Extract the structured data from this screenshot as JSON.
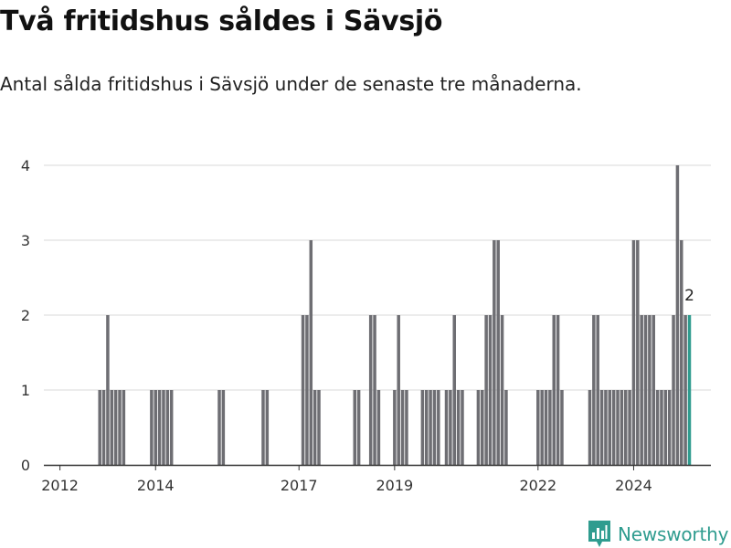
{
  "title": "Två fritidshus såldes i Sävsjö",
  "subtitle": "Antal sålda fritidshus i Sävsjö under de senaste tre månaderna.",
  "brand": {
    "name": "Newsworthy",
    "icon": "newsworthy-logo-icon",
    "color": "#2f9c8f"
  },
  "chart_data": {
    "type": "bar",
    "x_unit": "month",
    "x_start": "2011-12",
    "values": [
      0,
      0,
      0,
      0,
      0,
      0,
      0,
      0,
      0,
      0,
      0,
      1,
      1,
      2,
      1,
      1,
      1,
      1,
      0,
      0,
      0,
      0,
      0,
      0,
      1,
      1,
      1,
      1,
      1,
      1,
      0,
      0,
      0,
      0,
      0,
      0,
      0,
      0,
      0,
      0,
      0,
      1,
      1,
      0,
      0,
      0,
      0,
      0,
      0,
      0,
      0,
      0,
      1,
      1,
      0,
      0,
      0,
      0,
      0,
      0,
      0,
      0,
      2,
      2,
      3,
      1,
      1,
      0,
      0,
      0,
      0,
      0,
      0,
      0,
      0,
      1,
      1,
      0,
      0,
      2,
      2,
      1,
      0,
      0,
      0,
      1,
      2,
      1,
      1,
      0,
      0,
      0,
      1,
      1,
      1,
      1,
      1,
      0,
      1,
      1,
      2,
      1,
      1,
      0,
      0,
      0,
      1,
      1,
      2,
      2,
      3,
      3,
      2,
      1,
      0,
      0,
      0,
      0,
      0,
      0,
      0,
      1,
      1,
      1,
      1,
      2,
      2,
      1,
      0,
      0,
      0,
      0,
      0,
      0,
      1,
      2,
      2,
      1,
      1,
      1,
      1,
      1,
      1,
      1,
      1,
      3,
      3,
      2,
      2,
      2,
      2,
      1,
      1,
      1,
      1,
      2,
      4,
      3,
      2,
      2
    ],
    "highlight_last": true,
    "last_label": "2",
    "bar_color": "#6e6e73",
    "highlight_color": "#2f9c8f",
    "y_ticks": [
      0,
      1,
      2,
      3,
      4
    ],
    "ylim": [
      0,
      4
    ],
    "x_ticks": [
      "2012",
      "2014",
      "2017",
      "2019",
      "2022",
      "2024"
    ],
    "grid": true
  }
}
